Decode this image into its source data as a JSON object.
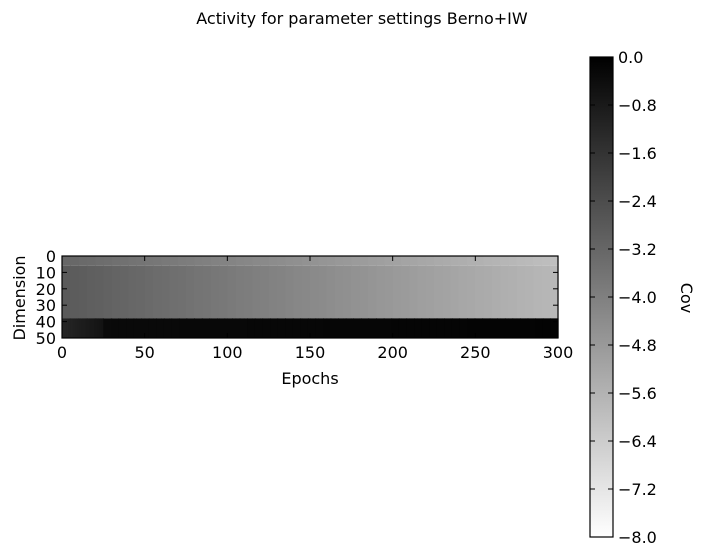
{
  "chart_data": {
    "type": "heatmap",
    "title": "Activity for parameter settings Berno+IW",
    "xlabel": "Epochs",
    "ylabel": "Dimension",
    "x_range": [
      0,
      300
    ],
    "y_range": [
      0,
      50
    ],
    "x_ticks": [
      "0",
      "50",
      "100",
      "150",
      "200",
      "250",
      "300"
    ],
    "y_ticks": [
      "0",
      "10",
      "20",
      "30",
      "40",
      "50"
    ],
    "colorbar": {
      "label": "Cov",
      "range": [
        -8.0,
        0.0
      ],
      "ticks": [
        "0.0",
        "−0.8",
        "−1.6",
        "−2.4",
        "−3.2",
        "−4.0",
        "−4.8",
        "−5.6",
        "−6.4",
        "−7.2",
        "−8.0"
      ],
      "colormap": "gray_r",
      "high_color": "#000000",
      "low_color": "#ffffff"
    },
    "regions": [
      {
        "dims": [
          0,
          6
        ],
        "epochs": [
          0,
          300
        ],
        "value_start": -3.2,
        "value_end": -6.0
      },
      {
        "dims": [
          6,
          38
        ],
        "epochs": [
          0,
          300
        ],
        "value_start": -2.8,
        "value_end": -5.8
      },
      {
        "dims": [
          38,
          50
        ],
        "epochs": [
          0,
          25
        ],
        "value_start": -1.2,
        "value_end": -0.6
      },
      {
        "dims": [
          38,
          50
        ],
        "epochs": [
          25,
          300
        ],
        "value_start": -0.3,
        "value_end": -0.1
      }
    ],
    "grid": false
  }
}
